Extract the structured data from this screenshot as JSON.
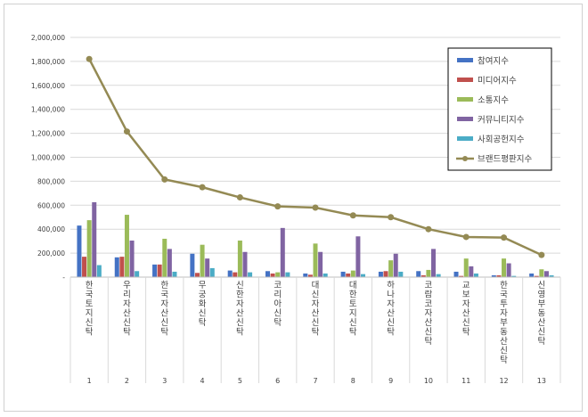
{
  "chart_data": {
    "type": "bar",
    "categories": [
      "1",
      "2",
      "3",
      "4",
      "5",
      "6",
      "7",
      "8",
      "9",
      "10",
      "11",
      "12",
      "13"
    ],
    "category_names": [
      "한국토지신탁",
      "우리자산신탁",
      "한국자산신탁",
      "무궁화신탁",
      "신한자산신탁",
      "코리아신탁",
      "대신자산신탁",
      "대한토지신탁",
      "하나자산신탁",
      "코람코자산신탁",
      "교보자산신탁",
      "한국투자부동산신탁",
      "신영부동산신탁"
    ],
    "yticks": [
      "-",
      "200,000",
      "400,000",
      "600,000",
      "800,000",
      "1,000,000",
      "1,200,000",
      "1,400,000",
      "1,600,000",
      "1,800,000",
      "2,000,000"
    ],
    "ylim": [
      0,
      2000000
    ],
    "grid": true,
    "legend_position": "top-right",
    "series": [
      {
        "name": "참여지수",
        "type": "bar",
        "color": "#4472c4",
        "values": [
          430000,
          165000,
          105000,
          195000,
          55000,
          50000,
          30000,
          45000,
          45000,
          50000,
          45000,
          15000,
          30000
        ]
      },
      {
        "name": "미디어지수",
        "type": "bar",
        "color": "#c0504d",
        "values": [
          170000,
          170000,
          105000,
          35000,
          40000,
          30000,
          20000,
          30000,
          50000,
          15000,
          10000,
          15000,
          10000
        ]
      },
      {
        "name": "소통지수",
        "type": "bar",
        "color": "#9bbb59",
        "values": [
          475000,
          520000,
          320000,
          270000,
          305000,
          40000,
          280000,
          55000,
          140000,
          60000,
          155000,
          155000,
          65000
        ]
      },
      {
        "name": "커뮤니티지수",
        "type": "bar",
        "color": "#8064a2",
        "values": [
          625000,
          305000,
          235000,
          155000,
          210000,
          410000,
          210000,
          340000,
          195000,
          235000,
          90000,
          115000,
          50000
        ]
      },
      {
        "name": "사회공헌지수",
        "type": "bar",
        "color": "#4bacc6",
        "values": [
          100000,
          50000,
          45000,
          75000,
          40000,
          40000,
          30000,
          25000,
          45000,
          25000,
          30000,
          10000,
          15000
        ]
      },
      {
        "name": "브랜드평판지수",
        "type": "line",
        "color": "#948a54",
        "values": [
          1820000,
          1215000,
          815000,
          750000,
          665000,
          590000,
          580000,
          515000,
          500000,
          400000,
          335000,
          330000,
          185000
        ]
      }
    ]
  }
}
